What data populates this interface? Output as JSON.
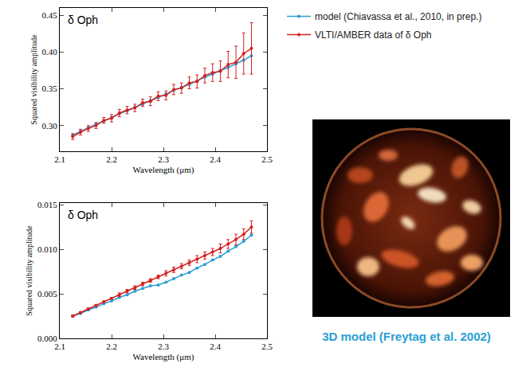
{
  "chart_data": [
    {
      "type": "line",
      "annotations": [
        "δ Oph"
      ],
      "x_label": "Wavelength (μm)",
      "y_label": "Squared visibility amplitude",
      "legend": "right",
      "xlim": [
        2.1,
        2.5
      ],
      "xticks": [
        2.1,
        2.2,
        2.3,
        2.4,
        2.5
      ],
      "ylim": [
        0.265,
        0.46
      ],
      "yticks": [
        {
          "value": 0.3,
          "label": "0.30"
        },
        0.35,
        {
          "value": 0.4,
          "label": "0.40"
        },
        0.45
      ],
      "x": [
        2.125,
        2.14,
        2.155,
        2.17,
        2.185,
        2.2,
        2.215,
        2.23,
        2.245,
        2.26,
        2.275,
        2.29,
        2.305,
        2.32,
        2.335,
        2.35,
        2.365,
        2.38,
        2.395,
        2.41,
        2.425,
        2.44,
        2.455,
        2.47
      ],
      "series": [
        {
          "name": "model (Chiavassa et al., 2010, in prep.)",
          "color": "#2a9fd6",
          "marker": "circle",
          "line_style": "solid",
          "values": [
            0.287,
            0.292,
            0.297,
            0.302,
            0.306,
            0.311,
            0.316,
            0.32,
            0.325,
            0.329,
            0.334,
            0.338,
            0.343,
            0.348,
            0.352,
            0.356,
            0.361,
            0.366,
            0.37,
            0.375,
            0.379,
            0.384,
            0.389,
            0.395
          ]
        },
        {
          "name": "VLTI/AMBER data of δ Oph",
          "color": "#d42020",
          "marker": "circle",
          "line_style": "solid",
          "values": [
            0.285,
            0.291,
            0.296,
            0.3,
            0.307,
            0.31,
            0.317,
            0.321,
            0.324,
            0.331,
            0.333,
            0.34,
            0.341,
            0.349,
            0.351,
            0.358,
            0.36,
            0.368,
            0.372,
            0.374,
            0.383,
            0.386,
            0.398,
            0.405
          ],
          "errors": [
            0.004,
            0.004,
            0.004,
            0.004,
            0.004,
            0.005,
            0.005,
            0.005,
            0.005,
            0.005,
            0.006,
            0.006,
            0.006,
            0.007,
            0.007,
            0.008,
            0.009,
            0.01,
            0.012,
            0.014,
            0.018,
            0.022,
            0.028,
            0.035
          ]
        }
      ]
    },
    {
      "type": "line",
      "annotations": [
        "δ Oph"
      ],
      "x_label": "Wavelength (μm)",
      "y_label": "Squared visibility amplitude",
      "xlim": [
        2.1,
        2.5
      ],
      "xticks": [
        2.1,
        2.2,
        2.3,
        2.4,
        2.5
      ],
      "ylim": [
        0,
        0.0152
      ],
      "yticks": [
        {
          "value": 0,
          "label": "0.000"
        },
        0.005,
        {
          "value": 0.01,
          "label": "0.010"
        },
        0.015
      ],
      "x": [
        2.125,
        2.14,
        2.155,
        2.17,
        2.185,
        2.2,
        2.215,
        2.23,
        2.245,
        2.26,
        2.275,
        2.29,
        2.305,
        2.32,
        2.335,
        2.35,
        2.365,
        2.38,
        2.395,
        2.41,
        2.425,
        2.44,
        2.455,
        2.47
      ],
      "series": [
        {
          "name": "model (Chiavassa et al., 2010, in prep.)",
          "color": "#2a9fd6",
          "marker": "circle",
          "line_style": "solid",
          "values": [
            0.0025,
            0.0028,
            0.0032,
            0.0035,
            0.0039,
            0.0042,
            0.0046,
            0.0049,
            0.0053,
            0.0056,
            0.0059,
            0.006,
            0.0063,
            0.0067,
            0.0071,
            0.0074,
            0.0079,
            0.0083,
            0.0088,
            0.0092,
            0.0098,
            0.0103,
            0.0109,
            0.0116
          ]
        },
        {
          "name": "VLTI/AMBER data of δ Oph",
          "color": "#d42020",
          "marker": "circle",
          "line_style": "solid",
          "values": [
            0.0025,
            0.0029,
            0.0033,
            0.0037,
            0.0041,
            0.0045,
            0.0049,
            0.0053,
            0.0057,
            0.0061,
            0.0065,
            0.0069,
            0.0073,
            0.0077,
            0.0081,
            0.0085,
            0.0089,
            0.0093,
            0.0097,
            0.0101,
            0.0106,
            0.0111,
            0.0117,
            0.0125
          ],
          "errors": [
            0.0001,
            0.0001,
            0.0001,
            0.0001,
            0.0001,
            0.0001,
            0.0002,
            0.0002,
            0.0002,
            0.0002,
            0.0002,
            0.0002,
            0.0003,
            0.0003,
            0.0003,
            0.0003,
            0.0004,
            0.0004,
            0.0004,
            0.0005,
            0.0005,
            0.0006,
            0.0006,
            0.0007
          ]
        }
      ]
    }
  ],
  "image": {
    "caption": "3D model (Freytag et al. 2002)"
  }
}
